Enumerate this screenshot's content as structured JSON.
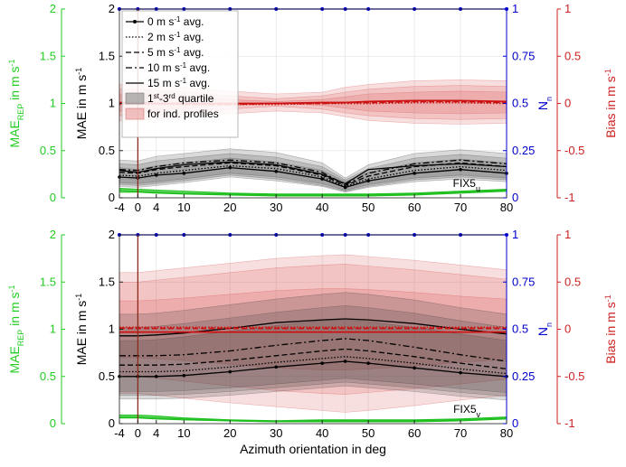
{
  "chart_data": [
    {
      "type": "line",
      "panel": "top",
      "panel_label": "FIX5",
      "panel_label_sub": "u",
      "x": [
        -4,
        0,
        4,
        10,
        20,
        30,
        40,
        45,
        50,
        60,
        70,
        80
      ],
      "xlim": [
        -4,
        80
      ],
      "xticks": [
        -4,
        0,
        4,
        10,
        20,
        30,
        40,
        50,
        60,
        70,
        80
      ],
      "left_axis": {
        "label": "MAE",
        "label_sub": "REP",
        "label_suffix": " in m s",
        "label_sup": "-1",
        "ylim": [
          0,
          2
        ],
        "ticks": [
          "0",
          "0.5",
          "1",
          "1.5",
          "2"
        ],
        "color": "#22cc22"
      },
      "main_axis": {
        "label": "MAE in m s",
        "label_sup": "-1",
        "ylim": [
          0,
          2
        ],
        "ticks": [
          "0",
          "0.5",
          "1",
          "1.5",
          "2"
        ]
      },
      "right_axis": {
        "label": "N",
        "label_sub": "n",
        "ylim": [
          0,
          1
        ],
        "ticks": [
          "0",
          "0.25",
          "0.5",
          "0.75",
          "1"
        ],
        "color": "#0000cc"
      },
      "far_right_axis": {
        "label": "Bias in m s",
        "label_sup": "-1",
        "ylim": [
          -1,
          1
        ],
        "ticks": [
          "-1",
          "-0.5",
          "0",
          "0.5",
          "1"
        ],
        "color": "#cc2222"
      },
      "vline_x": 0,
      "grid": true,
      "legend": {
        "position": "top-left",
        "entries": [
          {
            "label": "0 m s",
            "sup": "-1",
            "suffix": " avg.",
            "style": "solid-dot"
          },
          {
            "label": "2 m s",
            "sup": "-1",
            "suffix": " avg.",
            "style": "dotted"
          },
          {
            "label": "5 m s",
            "sup": "-1",
            "suffix": " avg.",
            "style": "dashed"
          },
          {
            "label": "10 m s",
            "sup": "-1",
            "suffix": " avg.",
            "style": "dashdot"
          },
          {
            "label": "15 m s",
            "sup": "-1",
            "suffix": " avg.",
            "style": "solid"
          }
        ],
        "quartile_line1_pre": "1",
        "quartile_line1_sup1": "st",
        "quartile_line1_mid": "-3",
        "quartile_line1_sup2": "rd",
        "quartile_line1_post": " quartile",
        "quartile_line2": "for ind. profiles"
      },
      "nn": [
        1,
        1,
        1,
        1,
        1,
        1,
        1,
        1,
        1,
        1,
        1,
        1
      ],
      "mae_series": [
        {
          "values": [
            0.22,
            0.21,
            0.24,
            0.26,
            0.32,
            0.28,
            0.2,
            0.11,
            0.18,
            0.26,
            0.3,
            0.26
          ],
          "style": "solid-dot"
        },
        {
          "values": [
            0.24,
            0.23,
            0.26,
            0.29,
            0.34,
            0.31,
            0.22,
            0.12,
            0.2,
            0.29,
            0.33,
            0.29
          ],
          "style": "dotted"
        },
        {
          "values": [
            0.27,
            0.26,
            0.3,
            0.33,
            0.37,
            0.34,
            0.24,
            0.13,
            0.23,
            0.33,
            0.37,
            0.33
          ],
          "style": "dashed"
        },
        {
          "values": [
            0.3,
            0.29,
            0.33,
            0.37,
            0.4,
            0.37,
            0.27,
            0.14,
            0.26,
            0.36,
            0.4,
            0.36
          ],
          "style": "dashdot"
        },
        {
          "values": [
            0.29,
            0.27,
            0.31,
            0.35,
            0.38,
            0.35,
            0.25,
            0.15,
            0.3,
            0.34,
            0.36,
            0.33
          ],
          "style": "solid"
        }
      ],
      "mae_quartile_bands": [
        {
          "low": [
            0.12,
            0.11,
            0.13,
            0.16,
            0.22,
            0.18,
            0.12,
            0.06,
            0.11,
            0.17,
            0.2,
            0.17
          ],
          "high": [
            0.32,
            0.3,
            0.34,
            0.37,
            0.42,
            0.38,
            0.29,
            0.17,
            0.27,
            0.37,
            0.41,
            0.37
          ]
        },
        {
          "low": [
            0.14,
            0.13,
            0.15,
            0.18,
            0.24,
            0.2,
            0.13,
            0.07,
            0.12,
            0.19,
            0.22,
            0.19
          ],
          "high": [
            0.36,
            0.35,
            0.39,
            0.42,
            0.47,
            0.43,
            0.33,
            0.19,
            0.31,
            0.42,
            0.46,
            0.42
          ]
        },
        {
          "low": [
            0.16,
            0.15,
            0.17,
            0.2,
            0.26,
            0.22,
            0.15,
            0.08,
            0.14,
            0.21,
            0.24,
            0.21
          ],
          "high": [
            0.4,
            0.39,
            0.44,
            0.47,
            0.52,
            0.48,
            0.37,
            0.21,
            0.35,
            0.47,
            0.51,
            0.47
          ]
        }
      ],
      "bias_series": [
        {
          "values": [
            0.01,
            0.01,
            0.0,
            0.0,
            0.0,
            0.0,
            0.01,
            0.01,
            0.02,
            0.03,
            0.03,
            0.02
          ],
          "style": "solid"
        },
        {
          "values": [
            0.0,
            0.0,
            0.0,
            -0.01,
            -0.01,
            0.0,
            0.0,
            0.01,
            0.01,
            0.02,
            0.02,
            0.01
          ],
          "style": "dashed"
        },
        {
          "values": [
            -0.01,
            -0.01,
            -0.01,
            -0.01,
            -0.01,
            -0.01,
            0.0,
            0.0,
            0.0,
            0.01,
            0.01,
            0.0
          ],
          "style": "dotted"
        }
      ],
      "bias_quartile_bands": [
        {
          "low": [
            -0.08,
            -0.08,
            -0.07,
            -0.05,
            -0.02,
            0.0,
            -0.02,
            -0.05,
            -0.08,
            -0.1,
            -0.11,
            -0.1
          ],
          "high": [
            0.1,
            0.1,
            0.09,
            0.07,
            0.04,
            0.02,
            0.04,
            0.07,
            0.1,
            0.12,
            0.13,
            0.12
          ]
        },
        {
          "low": [
            -0.13,
            -0.13,
            -0.12,
            -0.1,
            -0.06,
            -0.03,
            -0.06,
            -0.1,
            -0.13,
            -0.16,
            -0.17,
            -0.16
          ],
          "high": [
            0.15,
            0.15,
            0.14,
            0.12,
            0.08,
            0.05,
            0.08,
            0.12,
            0.15,
            0.18,
            0.19,
            0.18
          ]
        },
        {
          "low": [
            -0.18,
            -0.18,
            -0.17,
            -0.15,
            -0.11,
            -0.08,
            -0.1,
            -0.14,
            -0.18,
            -0.21,
            -0.22,
            -0.21
          ],
          "high": [
            0.2,
            0.2,
            0.19,
            0.17,
            0.13,
            0.1,
            0.12,
            0.17,
            0.2,
            0.24,
            0.25,
            0.24
          ]
        }
      ],
      "mae_rep_series": [
        {
          "values": [
            0.1,
            0.09,
            0.08,
            0.07,
            0.05,
            0.04,
            0.04,
            0.04,
            0.04,
            0.05,
            0.07,
            0.09
          ]
        },
        {
          "values": [
            0.08,
            0.07,
            0.06,
            0.05,
            0.04,
            0.03,
            0.03,
            0.03,
            0.03,
            0.04,
            0.06,
            0.08
          ]
        },
        {
          "values": [
            0.06,
            0.06,
            0.05,
            0.04,
            0.03,
            0.02,
            0.02,
            0.02,
            0.02,
            0.03,
            0.05,
            0.07
          ]
        }
      ]
    },
    {
      "type": "line",
      "panel": "bottom",
      "panel_label": "FIX5",
      "panel_label_sub": "v",
      "x": [
        -4,
        0,
        4,
        10,
        20,
        30,
        40,
        45,
        50,
        60,
        70,
        80
      ],
      "xlim": [
        -4,
        80
      ],
      "xticks": [
        -4,
        0,
        4,
        10,
        20,
        30,
        40,
        50,
        60,
        70,
        80
      ],
      "xlabel": "Azimuth orientation in deg",
      "left_axis": {
        "label": "MAE",
        "label_sub": "REP",
        "label_suffix": " in m s",
        "label_sup": "-1",
        "ylim": [
          0,
          2
        ],
        "ticks": [
          "0",
          "0.5",
          "1",
          "1.5",
          "2"
        ],
        "color": "#22cc22"
      },
      "main_axis": {
        "label": "MAE in m s",
        "label_sup": "-1",
        "ylim": [
          0,
          2
        ],
        "ticks": [
          "0",
          "0.5",
          "1",
          "1.5",
          "2"
        ]
      },
      "right_axis": {
        "label": "N",
        "label_sub": "n",
        "ylim": [
          0,
          1
        ],
        "ticks": [
          "0",
          "0.25",
          "0.5",
          "0.75",
          "1"
        ],
        "color": "#0000cc"
      },
      "far_right_axis": {
        "label": "Bias in m s",
        "label_sup": "-1",
        "ylim": [
          -1,
          1
        ],
        "ticks": [
          "-1",
          "-0.5",
          "0",
          "0.5",
          "1"
        ],
        "color": "#cc2222"
      },
      "vline_x": 0,
      "grid": true,
      "nn": [
        1,
        1,
        1,
        1,
        1,
        1,
        1,
        1,
        1,
        1,
        1,
        1
      ],
      "mae_series": [
        {
          "values": [
            0.5,
            0.5,
            0.5,
            0.51,
            0.55,
            0.6,
            0.64,
            0.66,
            0.64,
            0.59,
            0.54,
            0.5
          ],
          "style": "solid-dot"
        },
        {
          "values": [
            0.55,
            0.55,
            0.55,
            0.56,
            0.6,
            0.65,
            0.69,
            0.71,
            0.69,
            0.64,
            0.58,
            0.53
          ],
          "style": "dotted"
        },
        {
          "values": [
            0.62,
            0.62,
            0.62,
            0.63,
            0.67,
            0.72,
            0.77,
            0.79,
            0.77,
            0.71,
            0.64,
            0.58
          ],
          "style": "dashed"
        },
        {
          "values": [
            0.72,
            0.72,
            0.72,
            0.73,
            0.77,
            0.83,
            0.88,
            0.9,
            0.88,
            0.81,
            0.73,
            0.66
          ],
          "style": "dashdot"
        },
        {
          "values": [
            0.93,
            0.93,
            0.94,
            0.96,
            1.01,
            1.07,
            1.1,
            1.11,
            1.1,
            1.06,
            1.0,
            0.95
          ],
          "style": "solid"
        }
      ],
      "mae_quartile_bands": [
        {
          "low": [
            0.34,
            0.34,
            0.34,
            0.35,
            0.38,
            0.42,
            0.46,
            0.48,
            0.46,
            0.42,
            0.37,
            0.33
          ],
          "high": [
            0.88,
            0.88,
            0.89,
            0.92,
            0.98,
            1.04,
            1.09,
            1.1,
            1.08,
            1.02,
            0.95,
            0.88
          ]
        },
        {
          "low": [
            0.3,
            0.3,
            0.3,
            0.31,
            0.34,
            0.38,
            0.42,
            0.44,
            0.42,
            0.38,
            0.33,
            0.29
          ],
          "high": [
            1.02,
            1.02,
            1.03,
            1.06,
            1.12,
            1.18,
            1.23,
            1.25,
            1.23,
            1.17,
            1.09,
            1.02
          ]
        },
        {
          "low": [
            0.26,
            0.26,
            0.26,
            0.27,
            0.3,
            0.34,
            0.38,
            0.4,
            0.38,
            0.34,
            0.29,
            0.25
          ],
          "high": [
            1.16,
            1.16,
            1.17,
            1.2,
            1.26,
            1.32,
            1.37,
            1.39,
            1.37,
            1.31,
            1.23,
            1.16
          ]
        }
      ],
      "bias_series": [
        {
          "values": [
            -0.03,
            -0.03,
            -0.03,
            -0.03,
            -0.03,
            -0.03,
            -0.03,
            -0.03,
            -0.03,
            -0.03,
            -0.03,
            -0.03
          ],
          "style": "solid"
        },
        {
          "values": [
            0.01,
            0.01,
            0.01,
            0.01,
            0.01,
            0.01,
            0.01,
            0.01,
            0.01,
            0.01,
            0.01,
            0.01
          ],
          "style": "dashed"
        },
        {
          "values": [
            0.02,
            0.02,
            0.02,
            0.02,
            0.02,
            0.02,
            0.02,
            0.02,
            0.02,
            0.02,
            0.02,
            0.02
          ],
          "style": "dotted"
        }
      ],
      "bias_quartile_bands": [
        {
          "low": [
            -0.3,
            -0.3,
            -0.31,
            -0.33,
            -0.37,
            -0.41,
            -0.43,
            -0.43,
            -0.42,
            -0.39,
            -0.35,
            -0.32
          ],
          "high": [
            0.3,
            0.3,
            0.31,
            0.33,
            0.37,
            0.41,
            0.43,
            0.43,
            0.42,
            0.39,
            0.35,
            0.32
          ]
        },
        {
          "low": [
            -0.5,
            -0.5,
            -0.52,
            -0.55,
            -0.6,
            -0.65,
            -0.68,
            -0.69,
            -0.67,
            -0.63,
            -0.58,
            -0.53
          ],
          "high": [
            0.5,
            0.5,
            0.52,
            0.55,
            0.6,
            0.65,
            0.68,
            0.69,
            0.67,
            0.63,
            0.58,
            0.53
          ]
        },
        {
          "low": [
            -0.68,
            -0.68,
            -0.7,
            -0.73,
            -0.78,
            -0.82,
            -0.86,
            -0.88,
            -0.86,
            -0.81,
            -0.75,
            -0.7
          ],
          "high": [
            0.6,
            0.6,
            0.62,
            0.65,
            0.7,
            0.75,
            0.78,
            0.79,
            0.77,
            0.73,
            0.68,
            0.63
          ]
        }
      ],
      "mae_rep_series": [
        {
          "values": [
            0.09,
            0.09,
            0.08,
            0.06,
            0.04,
            0.03,
            0.04,
            0.04,
            0.04,
            0.04,
            0.05,
            0.07
          ]
        },
        {
          "values": [
            0.07,
            0.07,
            0.06,
            0.05,
            0.03,
            0.02,
            0.03,
            0.03,
            0.03,
            0.03,
            0.04,
            0.06
          ]
        },
        {
          "values": [
            0.06,
            0.06,
            0.05,
            0.04,
            0.03,
            0.02,
            0.02,
            0.02,
            0.02,
            0.02,
            0.03,
            0.05
          ]
        }
      ]
    }
  ]
}
